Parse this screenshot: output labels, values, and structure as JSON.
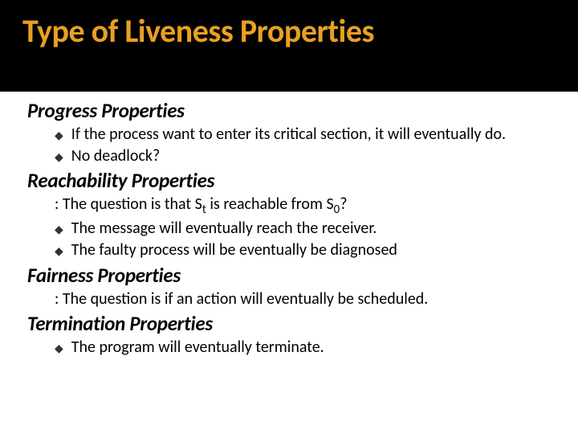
{
  "title": "Type of Liveness Properties",
  "sections": {
    "progress": {
      "heading": "Progress Properties",
      "items": [
        "If the process want to enter its critical section, it will eventually do.",
        "No deadlock?"
      ]
    },
    "reachability": {
      "heading": "Reachability Properties",
      "lead_prefix": ": The question is that S",
      "lead_sub1": "t",
      "lead_mid": " is reachable from S",
      "lead_sub2": "0",
      "lead_suffix": "?",
      "items": [
        "The message will eventually reach the receiver.",
        "The faulty process will be eventually be diagnosed"
      ]
    },
    "fairness": {
      "heading": "Fairness Properties",
      "lead": ": The question is if an action will eventually be scheduled."
    },
    "termination": {
      "heading": "Termination Properties",
      "items": [
        "The program will eventually terminate."
      ]
    }
  },
  "colors": {
    "title_color": "#e9a021",
    "title_bg": "#000000",
    "body_bg": "#ffffff",
    "text_color": "#000000"
  }
}
